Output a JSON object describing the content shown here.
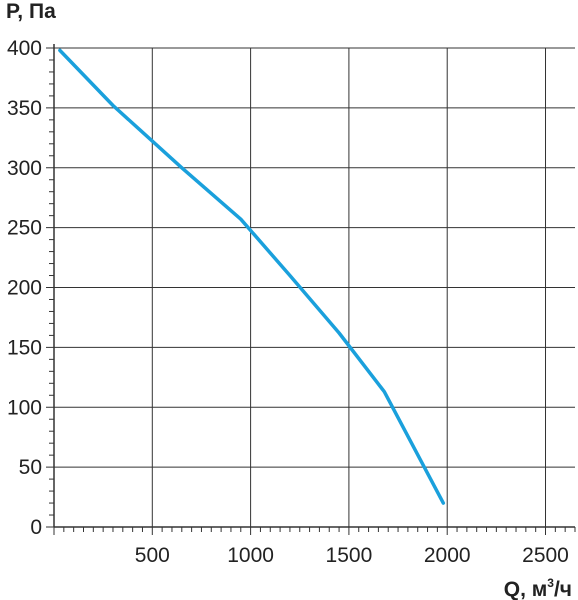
{
  "chart_data": {
    "type": "line",
    "xlabel": "Q, м",
    "xlabel_sup": "3",
    "xlabel_unit": "/ч",
    "ylabel": "P, Па",
    "xlim": [
      0,
      2650
    ],
    "ylim": [
      0,
      400
    ],
    "xticks": [
      500,
      1000,
      1500,
      2000,
      2500
    ],
    "yticks": [
      0,
      50,
      100,
      150,
      200,
      250,
      300,
      350,
      400
    ],
    "x_minor_step": 50,
    "y_minor_step": 10,
    "grid": true,
    "series": [
      {
        "color": "#1aa0dc",
        "x": [
          30,
          300,
          650,
          950,
          1200,
          1450,
          1680,
          1980
        ],
        "y": [
          398,
          352,
          300,
          257,
          210,
          162,
          113,
          20
        ]
      }
    ]
  }
}
